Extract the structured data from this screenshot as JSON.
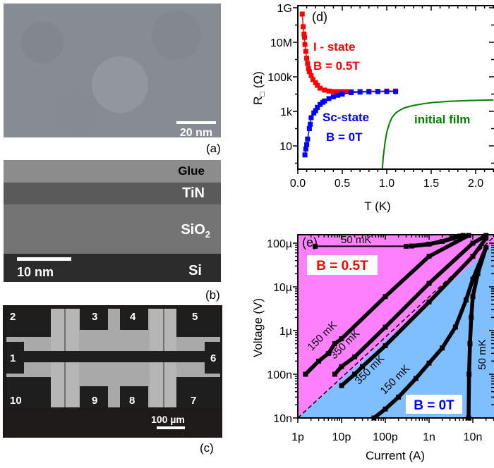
{
  "panels": {
    "a": {
      "label": "(a)",
      "scale_bar": "20 nm"
    },
    "b": {
      "label": "(b)",
      "layers": [
        "Glue",
        "TiN",
        "SiO",
        "Si"
      ],
      "sio2_subscript": "2",
      "scale_bar": "10 nm"
    },
    "c": {
      "label": "(c)",
      "contacts": [
        "1",
        "2",
        "3",
        "4",
        "5",
        "6",
        "7",
        "8",
        "9",
        "10"
      ],
      "scale_bar": "100 µm"
    }
  },
  "chart_data": [
    {
      "panel": "(d)",
      "type": "line",
      "xlabel": "T (K)",
      "ylabel_main": "R",
      "ylabel_sub": "□",
      "ylabel_unit": " (Ω)",
      "xlim": [
        0,
        2.2
      ],
      "ylim": [
        0.45,
        1200000000.0
      ],
      "yscale": "log",
      "x_ticks": [
        0.0,
        0.5,
        1.0,
        1.5,
        2.0
      ],
      "x_tick_labels": [
        "0.0",
        "0.5",
        "1.0",
        "1.5",
        "2.0"
      ],
      "y_ticks": [
        1000000000.0,
        10000000.0,
        100000.0,
        1000.0,
        10
      ],
      "y_tick_labels": [
        "1G",
        "10M",
        "100k",
        "1k",
        "10"
      ],
      "annotations": {
        "insulating": "I - state",
        "insulating_field": "B = 0.5T",
        "sc": "Sc-state",
        "sc_field": "B = 0T",
        "film": "initial film"
      },
      "series": [
        {
          "key": "i-state",
          "color": "#ff0000",
          "markers": true,
          "x": [
            0.05,
            0.06,
            0.07,
            0.075,
            0.08,
            0.09,
            0.1,
            0.11,
            0.12,
            0.13,
            0.15,
            0.17,
            0.2,
            0.22,
            0.25,
            0.3,
            0.35,
            0.4,
            0.45,
            0.5,
            0.55,
            0.6,
            0.7,
            0.8,
            0.9,
            1.0,
            1.1
          ],
          "y": [
            430000000.0,
            80000000.0,
            30000000.0,
            19000000.0,
            7500000.0,
            3000000.0,
            1200000.0,
            600000.0,
            300000.0,
            200000.0,
            120000.0,
            70000.0,
            45000.0,
            32000.0,
            22000.0,
            17000.0,
            15000.0,
            14000.0,
            14000.0,
            14000.0,
            14000.0,
            14000.0,
            14000.0,
            14500.0,
            14500.0,
            15000.0,
            15000.0
          ]
        },
        {
          "key": "sc-state",
          "color": "#0000ff",
          "markers": true,
          "x": [
            0.08,
            0.09,
            0.1,
            0.11,
            0.13,
            0.14,
            0.15,
            0.18,
            0.2,
            0.22,
            0.25,
            0.28,
            0.3,
            0.35,
            0.4,
            0.45,
            0.5,
            0.6,
            0.7,
            0.8,
            0.9,
            1.0,
            1.1
          ],
          "y": [
            3,
            6.6,
            12,
            25,
            100,
            180,
            430,
            800,
            1100.0,
            1700.0,
            2500.0,
            3300.0,
            4000.0,
            5500.0,
            7000.0,
            8500.0,
            10000.0,
            12000.0,
            13000.0,
            13500.0,
            14000.0,
            14000.0,
            14000.0
          ]
        },
        {
          "key": "initial-film",
          "color": "#008000",
          "markers": false,
          "x": [
            0.95,
            0.96,
            0.98,
            1.0,
            1.03,
            1.06,
            1.1,
            1.15,
            1.2,
            1.3,
            1.4,
            1.5,
            1.7,
            1.9,
            2.2
          ],
          "y": [
            0.45,
            2,
            15,
            60,
            200,
            450,
            800,
            1200.0,
            1600.0,
            2200.0,
            2700.0,
            3200.0,
            3800.0,
            4200.0,
            4600.0
          ]
        }
      ]
    },
    {
      "panel": "(e)",
      "type": "line",
      "xlabel": "Current (A)",
      "ylabel": "Voltage (V)",
      "xscale": "log",
      "yscale": "log",
      "xlim": [
        1e-12,
        3e-08
      ],
      "ylim": [
        1e-08,
        0.00016
      ],
      "x_ticks": [
        1e-12,
        1e-11,
        1e-10,
        1e-09,
        1e-08
      ],
      "x_tick_labels": [
        "1p",
        "10p",
        "100p",
        "1n",
        "10n"
      ],
      "y_ticks": [
        0.0001,
        1e-05,
        1e-06,
        1e-07,
        1e-08
      ],
      "y_tick_labels": [
        "100µ",
        "10µ",
        "1µ",
        "100n",
        "10n"
      ],
      "regions": {
        "upper_color": "#ff80ff",
        "lower_color": "#80bfff",
        "upper_label": "B = 0.5T",
        "upper_label_color": "#ff0000",
        "lower_label": "B = 0T",
        "lower_label_color": "#0000ff"
      },
      "series": [
        {
          "key": "0.5T-50mK",
          "label": "50 mK",
          "x": [
            2.5e-12,
            3e-10,
            4e-10,
            1e-09,
            2e-09,
            3.5e-09,
            5e-09,
            6e-09
          ],
          "y": [
            8.5e-05,
            8.5e-05,
            8.6e-05,
            9.5e-05,
            0.00011,
            0.00013,
            0.000145,
            0.00015
          ]
        },
        {
          "key": "0.5T-150mK",
          "label": "150 mK",
          "x": [
            1.5e-12,
            3e-12,
            5e-12,
            7e-12,
            1e-11,
            1e-10,
            1e-09,
            8e-09
          ],
          "y": [
            1e-07,
            2e-07,
            3e-07,
            5e-07,
            6.5e-07,
            6e-06,
            5e-05,
            0.00015
          ]
        },
        {
          "key": "0.5T-350mK",
          "label": "350 mK",
          "x": [
            7e-12,
            1e-11,
            2e-11,
            1e-10,
            1e-09,
            1e-08,
            2e-08
          ],
          "y": [
            1e-07,
            1.5e-07,
            2.5e-07,
            1.2e-06,
            1.2e-05,
            0.0001,
            0.00015
          ]
        },
        {
          "key": "0T-350mK",
          "label": "350 mK",
          "x": [
            1e-11,
            2e-11,
            3e-11,
            1e-10,
            1e-09,
            1e-08,
            2e-08
          ],
          "y": [
            5.5e-08,
            1e-07,
            1.5e-07,
            4.5e-07,
            4.5e-06,
            5e-05,
            0.00013
          ]
        },
        {
          "key": "0T-150mK",
          "label": "150 mK",
          "x": [
            5.5e-11,
            1e-10,
            2e-10,
            5e-10,
            1e-09,
            2e-09,
            4e-09,
            7e-09,
            1e-08,
            2e-08
          ],
          "y": [
            1e-08,
            1.6e-08,
            3e-08,
            8e-08,
            1.8e-07,
            4e-07,
            1.2e-06,
            5e-06,
            1.5e-05,
            8e-05
          ]
        },
        {
          "key": "0T-50mK",
          "label": "50 mK",
          "x": [
            8e-09,
            8.2e-09,
            8.6e-09,
            9.2e-09,
            1e-08,
            1.3e-08,
            2e-08
          ],
          "y": [
            1e-08,
            1e-07,
            5e-07,
            2e-06,
            6e-06,
            2e-05,
            8e-05
          ]
        }
      ]
    }
  ]
}
